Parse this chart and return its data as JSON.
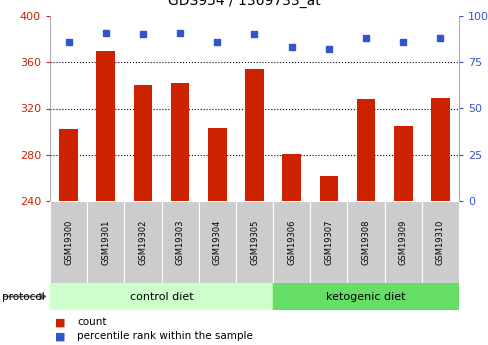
{
  "title": "GDS954 / 1369733_at",
  "samples": [
    "GSM19300",
    "GSM19301",
    "GSM19302",
    "GSM19303",
    "GSM19304",
    "GSM19305",
    "GSM19306",
    "GSM19307",
    "GSM19308",
    "GSM19309",
    "GSM19310"
  ],
  "counts": [
    302,
    370,
    340,
    342,
    303,
    354,
    281,
    262,
    328,
    305,
    329
  ],
  "percentile_ranks": [
    86,
    91,
    90,
    91,
    86,
    90,
    83,
    82,
    88,
    86,
    88
  ],
  "bar_color": "#cc2200",
  "dot_color": "#3355cc",
  "ymin": 240,
  "ymax": 400,
  "y2min": 0,
  "y2max": 100,
  "yticks": [
    240,
    280,
    320,
    360,
    400
  ],
  "y2ticks": [
    0,
    25,
    50,
    75,
    100
  ],
  "gridlines": [
    280,
    320,
    360
  ],
  "n_control": 6,
  "n_ketogenic": 5,
  "control_label": "control diet",
  "ketogenic_label": "ketogenic diet",
  "protocol_label": "protocol",
  "legend_count": "count",
  "legend_percentile": "percentile rank within the sample",
  "plot_bg": "#ffffff",
  "control_band_color": "#ccffcc",
  "ketogenic_band_color": "#66dd66",
  "cell_bg_color": "#cccccc",
  "label_color_red": "#cc2200",
  "label_color_blue": "#3355cc",
  "bar_width": 0.5
}
